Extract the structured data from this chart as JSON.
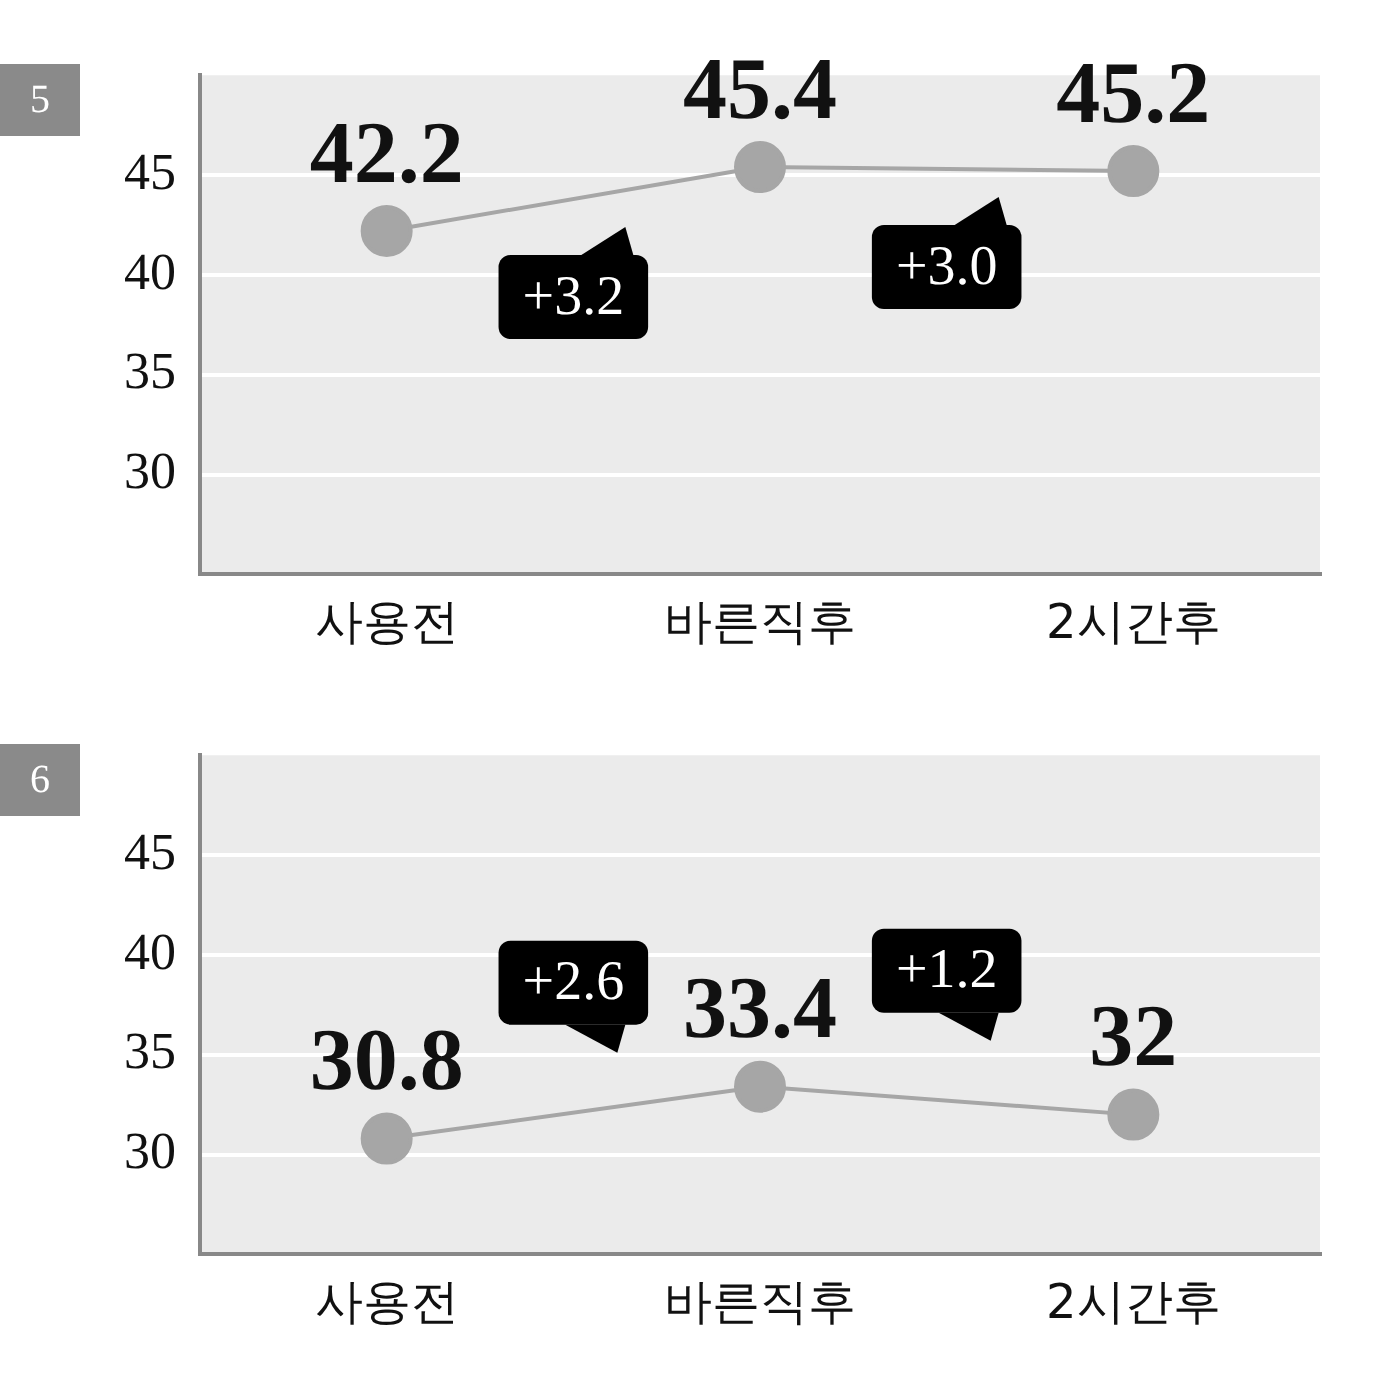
{
  "chart_data": [
    {
      "type": "line",
      "title": "5",
      "categories": [
        "사용전",
        "바른직후",
        "2시간후"
      ],
      "series": [
        {
          "color": "#a6a6a6",
          "values": [
            42.2,
            45.4,
            45.2
          ]
        }
      ],
      "ylim": [
        25,
        50
      ],
      "yticks": [
        30,
        35,
        40,
        45
      ],
      "grid": "y",
      "marker": "circle",
      "data_labels": true,
      "annotations": [
        "+3.2",
        "+3.0"
      ]
    },
    {
      "type": "line",
      "title": "6",
      "categories": [
        "사용전",
        "바른직후",
        "2시간후"
      ],
      "series": [
        {
          "color": "#a6a6a6",
          "values": [
            30.8,
            33.4,
            32
          ]
        }
      ],
      "ylim": [
        25,
        50
      ],
      "yticks": [
        30,
        35,
        40,
        45
      ],
      "grid": "y",
      "marker": "circle",
      "data_labels": true,
      "annotations": [
        "+2.6",
        "+1.2"
      ]
    }
  ]
}
